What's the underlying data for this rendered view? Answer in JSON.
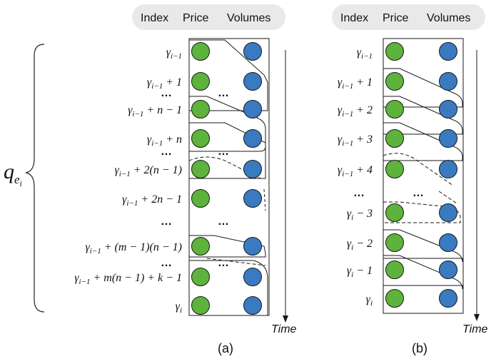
{
  "panel_a": {
    "header": {
      "index": "Index",
      "price": "Price",
      "volumes": "Volumes"
    },
    "brace_label": "q",
    "brace_sub": "e",
    "brace_sub2": "i",
    "rows": [
      {
        "base": "γ",
        "sub": "i−1",
        "rest": ""
      },
      {
        "base": "γ",
        "sub": "i−1",
        "rest": " + 1"
      },
      {
        "base": "γ",
        "sub": "i−1",
        "rest": " + n − 1"
      },
      {
        "base": "γ",
        "sub": "i−1",
        "rest": " + n"
      },
      {
        "base": "γ",
        "sub": "i−1",
        "rest": " + 2(n − 1)"
      },
      {
        "base": "γ",
        "sub": "i−1",
        "rest": " + 2n − 1"
      },
      {
        "base": "γ",
        "sub": "i−1",
        "rest": " + (m − 1)(n − 1)"
      },
      {
        "base": "γ",
        "sub": "i−1",
        "rest": " + m(n − 1) + k − 1"
      },
      {
        "base": "γ",
        "sub": "i",
        "rest": ""
      }
    ],
    "ellipsis": "…",
    "time_label": "Time",
    "caption": "(a)"
  },
  "panel_b": {
    "header": {
      "index": "Index",
      "price": "Price",
      "volumes": "Volumes"
    },
    "rows": [
      {
        "base": "γ",
        "sub": "i−1",
        "rest": ""
      },
      {
        "base": "γ",
        "sub": "i−1",
        "rest": " + 1"
      },
      {
        "base": "γ",
        "sub": "i−1",
        "rest": " + 2"
      },
      {
        "base": "γ",
        "sub": "i−1",
        "rest": " + 3"
      },
      {
        "base": "γ",
        "sub": "i−1",
        "rest": " + 4"
      },
      {
        "base": "γ",
        "sub": "i",
        "rest": " − 3"
      },
      {
        "base": "γ",
        "sub": "i",
        "rest": " − 2"
      },
      {
        "base": "γ",
        "sub": "i",
        "rest": " − 1"
      },
      {
        "base": "γ",
        "sub": "i",
        "rest": ""
      }
    ],
    "ellipsis": "…",
    "time_label": "Time",
    "caption": "(b)"
  },
  "colors": {
    "price": "#5db33b",
    "volume": "#3a7ac0",
    "header_bg": "#e9e9e9",
    "outline": "#1a1a1a"
  }
}
